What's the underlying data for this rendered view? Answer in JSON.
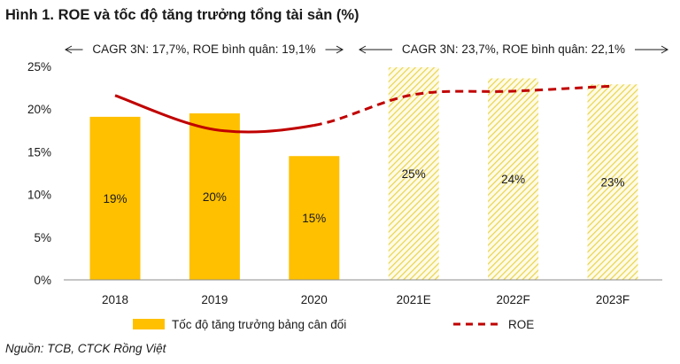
{
  "chart_data": {
    "type": "bar",
    "title": "Hình 1. ROE và tốc độ tăng trưởng tổng tài sản (%)",
    "categories": [
      "2018",
      "2019",
      "2020",
      "2021E",
      "2022F",
      "2023F"
    ],
    "forecast_from_index": 3,
    "ylim": [
      0,
      25
    ],
    "yticks": [
      0,
      5,
      10,
      15,
      20,
      25
    ],
    "ytick_labels": [
      "0%",
      "5%",
      "10%",
      "15%",
      "20%",
      "25%"
    ],
    "xlabel": "",
    "ylabel": "",
    "grid": false,
    "series": [
      {
        "name": "Tốc độ tăng trưởng bảng cân đối",
        "type": "bar",
        "color": "#FFC000",
        "forecast_style": "hatched",
        "values": [
          19.1,
          19.5,
          14.5,
          24.9,
          23.6,
          22.9
        ],
        "data_labels": [
          "19%",
          "20%",
          "15%",
          "25%",
          "24%",
          "23%"
        ]
      },
      {
        "name": "ROE",
        "type": "line",
        "color": "#C00000",
        "forecast_style": "dashed",
        "values": [
          21.6,
          17.6,
          18.1,
          21.7,
          22.1,
          22.7
        ]
      }
    ],
    "annotations": [
      {
        "text": "CAGR 3N: 17,7%, ROE bình quân: 19,1%",
        "span": [
          "2018",
          "2020"
        ]
      },
      {
        "text": "CAGR 3N: 23,7%, ROE bình quân: 22,1%",
        "span": [
          "2021E",
          "2023F"
        ]
      }
    ],
    "legend_position": "bottom",
    "source": "Nguồn: TCB, CTCK Rồng Việt"
  }
}
